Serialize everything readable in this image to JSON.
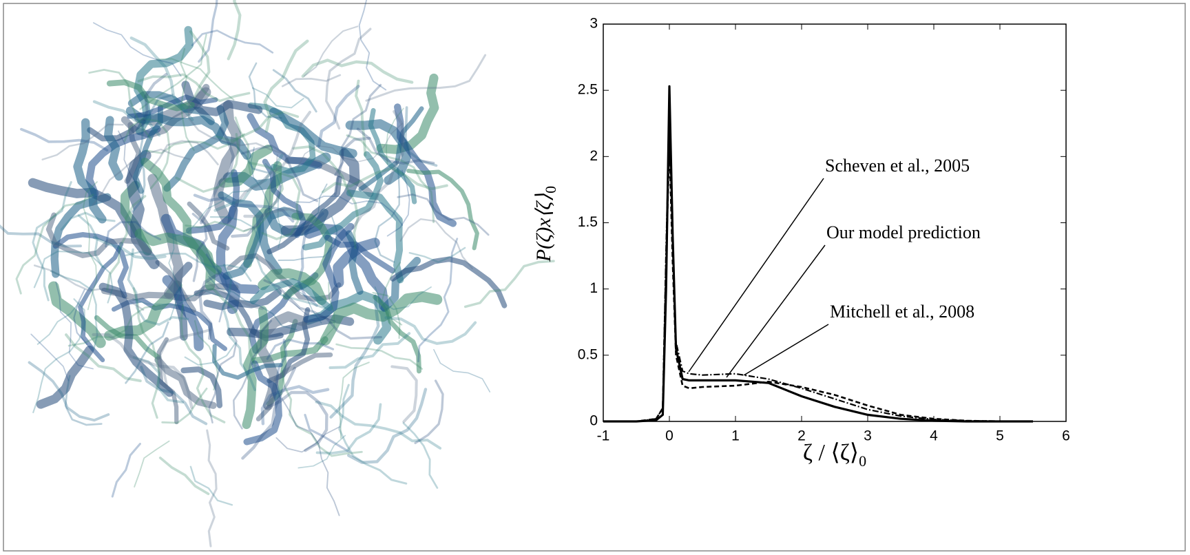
{
  "chart_data": {
    "type": "line",
    "y_label": {
      "text": "P(ζ)x⟨ζ⟩",
      "subscript": "0"
    },
    "x_label": {
      "text": "ζ / ⟨ζ⟩",
      "subscript": "0"
    },
    "x": [
      -1,
      -0.5,
      -0.2,
      -0.1,
      -0.05,
      0,
      0.05,
      0.1,
      0.2,
      0.3,
      0.5,
      1,
      1.5,
      2,
      2.5,
      3,
      3.5,
      4,
      4.5,
      5,
      5.5
    ],
    "series": [
      {
        "name": "Scheven et al., 2005",
        "color": "#000000",
        "line_style": "dashdot",
        "values": [
          0,
          0,
          0.02,
          0.1,
          1.3,
          2.3,
          1.3,
          0.6,
          0.38,
          0.36,
          0.35,
          0.36,
          0.32,
          0.25,
          0.17,
          0.09,
          0.04,
          0.015,
          0.005,
          0.002,
          0
        ]
      },
      {
        "name": "Our model prediction",
        "color": "#000000",
        "line_style": "solid",
        "values": [
          0,
          0,
          0.01,
          0.05,
          1.0,
          2.53,
          1.4,
          0.55,
          0.32,
          0.31,
          0.31,
          0.31,
          0.29,
          0.19,
          0.11,
          0.05,
          0.02,
          0.005,
          0,
          0,
          0
        ]
      },
      {
        "name": "Mitchell et al., 2008",
        "color": "#000000",
        "line_style": "dashed",
        "values": [
          0,
          0,
          0.02,
          0.1,
          1.2,
          2.1,
          1.2,
          0.5,
          0.27,
          0.25,
          0.26,
          0.27,
          0.3,
          0.26,
          0.2,
          0.12,
          0.05,
          0.02,
          0.005,
          0,
          0
        ]
      }
    ],
    "xlim": [
      -1,
      6
    ],
    "xticks": [
      -1,
      0,
      1,
      2,
      3,
      4,
      5,
      6
    ],
    "ylim": [
      0,
      3
    ],
    "yticks": [
      0,
      0.5,
      1,
      1.5,
      2,
      2.5,
      3
    ],
    "grid": false
  }
}
